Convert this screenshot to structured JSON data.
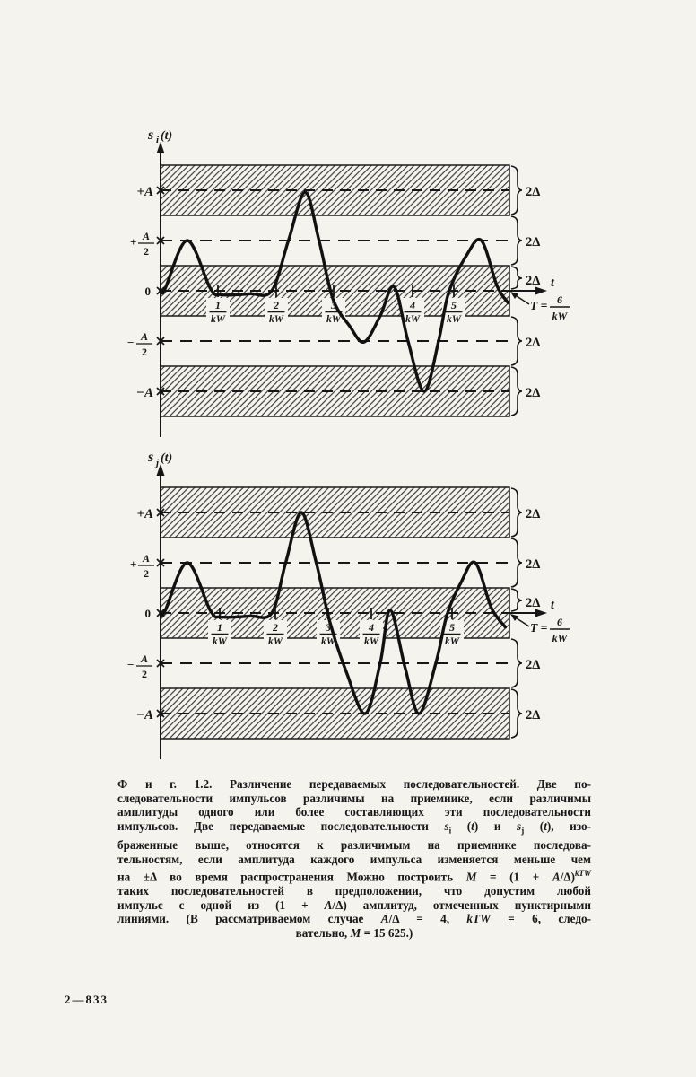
{
  "page": {
    "footer_mark": "2—833"
  },
  "figure": {
    "band_label": "2Δ",
    "t_label": "t",
    "period": {
      "prefix": "T =",
      "num": "6",
      "den": "kW"
    },
    "ticks": {
      "nums": [
        "1",
        "2",
        "3",
        "4",
        "5"
      ],
      "den": "kW"
    },
    "levels": [
      {
        "label": "+A"
      },
      {
        "sign": "+",
        "num": "A",
        "den": "2"
      },
      {
        "label": "0"
      },
      {
        "sign": "−",
        "num": "A",
        "den": "2"
      },
      {
        "label": "−A"
      }
    ],
    "plots": [
      {
        "ylab": {
          "base": "s",
          "sub": "i",
          "rest": "(t)"
        }
      },
      {
        "ylab": {
          "base": "s",
          "sub": "j",
          "rest": "(t)"
        }
      }
    ]
  },
  "caption": {
    "lines": [
      "Ф и г.  1.2.  Различение  передаваемых  последовательностей.  Две по-",
      "следовательности импульсов различимы на приемнике, если различимы",
      "амплитуды одного или более составляющих эти последовательности",
      "импульсов. Две передаваемые последовательности *s*_{i} (*t*) и *s*_{j} (*t*), изо-",
      "браженные выше, относятся к различимым на приемнике последова-",
      "тельностям, если амплитуда каждого импульса изменяется меньше чем",
      "на ±Δ во время распространения  Можно построить *M* = (1 + *A*/Δ)^{*kTW*}",
      "таких последовательностей в предположении, что допустим любой",
      "импульс с одной из (1 + *A*/Δ) амплитуд, отмеченных пунктирными",
      "линиями. (В рассматриваемом случае *A*/Δ = 4, *kTW* = 6, следо-",
      "вательно, *M* = 15 625.)"
    ]
  },
  "chart_data": [
    {
      "type": "line",
      "name": "si(t)",
      "xlabel": "t",
      "ylabel": "si(t)",
      "x_unit": "1/kW",
      "x_range": [
        0,
        6
      ],
      "x_ticks": [
        "1/kW",
        "2/kW",
        "3/kW",
        "4/kW",
        "5/kW"
      ],
      "period": "T = 6/kW",
      "amplitude_levels": [
        "+A",
        "+A/2",
        "0",
        "-A/2",
        "-A"
      ],
      "band_height_label": "2Δ",
      "hatched_bands_centered_at": [
        "+A",
        "0",
        "-A"
      ],
      "pulse_peaks_t_amp": [
        [
          0.5,
          0.5
        ],
        [
          2.6,
          1.0
        ],
        [
          3.66,
          -0.5
        ],
        [
          4.2,
          0.0
        ],
        [
          4.74,
          -1.0
        ],
        [
          5.77,
          0.5
        ]
      ],
      "curve_points": [
        [
          0,
          0
        ],
        [
          0.08,
          0.02
        ],
        [
          0.48,
          0.5
        ],
        [
          0.9,
          0.02
        ],
        [
          1.1,
          -0.04
        ],
        [
          1.6,
          -0.03
        ],
        [
          2.0,
          0.0
        ],
        [
          2.3,
          0.5
        ],
        [
          2.6,
          0.98
        ],
        [
          2.85,
          0.5
        ],
        [
          3.1,
          -0.08
        ],
        [
          3.4,
          -0.35
        ],
        [
          3.66,
          -0.51
        ],
        [
          3.95,
          -0.25
        ],
        [
          4.2,
          0.04
        ],
        [
          4.45,
          -0.5
        ],
        [
          4.74,
          -1.0
        ],
        [
          5.0,
          -0.5
        ],
        [
          5.18,
          -0.02
        ],
        [
          5.5,
          0.35
        ],
        [
          5.77,
          0.5
        ],
        [
          6.05,
          0.05
        ],
        [
          6.25,
          -0.12
        ]
      ]
    },
    {
      "type": "line",
      "name": "sj(t)",
      "xlabel": "t",
      "ylabel": "sj(t)",
      "x_unit": "1/kW",
      "x_range": [
        0,
        6
      ],
      "x_ticks": [
        "1/kW",
        "2/kW",
        "3/kW",
        "4/kW",
        "5/kW"
      ],
      "period": "T = 6/kW",
      "amplitude_levels": [
        "+A",
        "+A/2",
        "0",
        "-A/2",
        "-A"
      ],
      "band_height_label": "2Δ",
      "hatched_bands_centered_at": [
        "+A",
        "0",
        "-A"
      ],
      "pulse_peaks_t_amp": [
        [
          0.5,
          0.5
        ],
        [
          2.53,
          1.0
        ],
        [
          3.68,
          -1.0
        ],
        [
          4.13,
          0.0
        ],
        [
          4.65,
          -1.0
        ],
        [
          5.66,
          0.5
        ]
      ],
      "curve_points": [
        [
          0,
          0
        ],
        [
          0.08,
          0.02
        ],
        [
          0.48,
          0.5
        ],
        [
          0.9,
          0.02
        ],
        [
          1.1,
          -0.04
        ],
        [
          1.6,
          -0.03
        ],
        [
          2.0,
          0.0
        ],
        [
          2.25,
          0.5
        ],
        [
          2.53,
          1.0
        ],
        [
          2.8,
          0.5
        ],
        [
          3.05,
          -0.1
        ],
        [
          3.35,
          -0.6
        ],
        [
          3.68,
          -1.0
        ],
        [
          3.95,
          -0.5
        ],
        [
          4.13,
          0.03
        ],
        [
          4.4,
          -0.55
        ],
        [
          4.65,
          -1.0
        ],
        [
          4.95,
          -0.5
        ],
        [
          5.15,
          -0.02
        ],
        [
          5.4,
          0.3
        ],
        [
          5.66,
          0.5
        ],
        [
          5.95,
          0.05
        ],
        [
          6.2,
          -0.14
        ]
      ]
    }
  ]
}
